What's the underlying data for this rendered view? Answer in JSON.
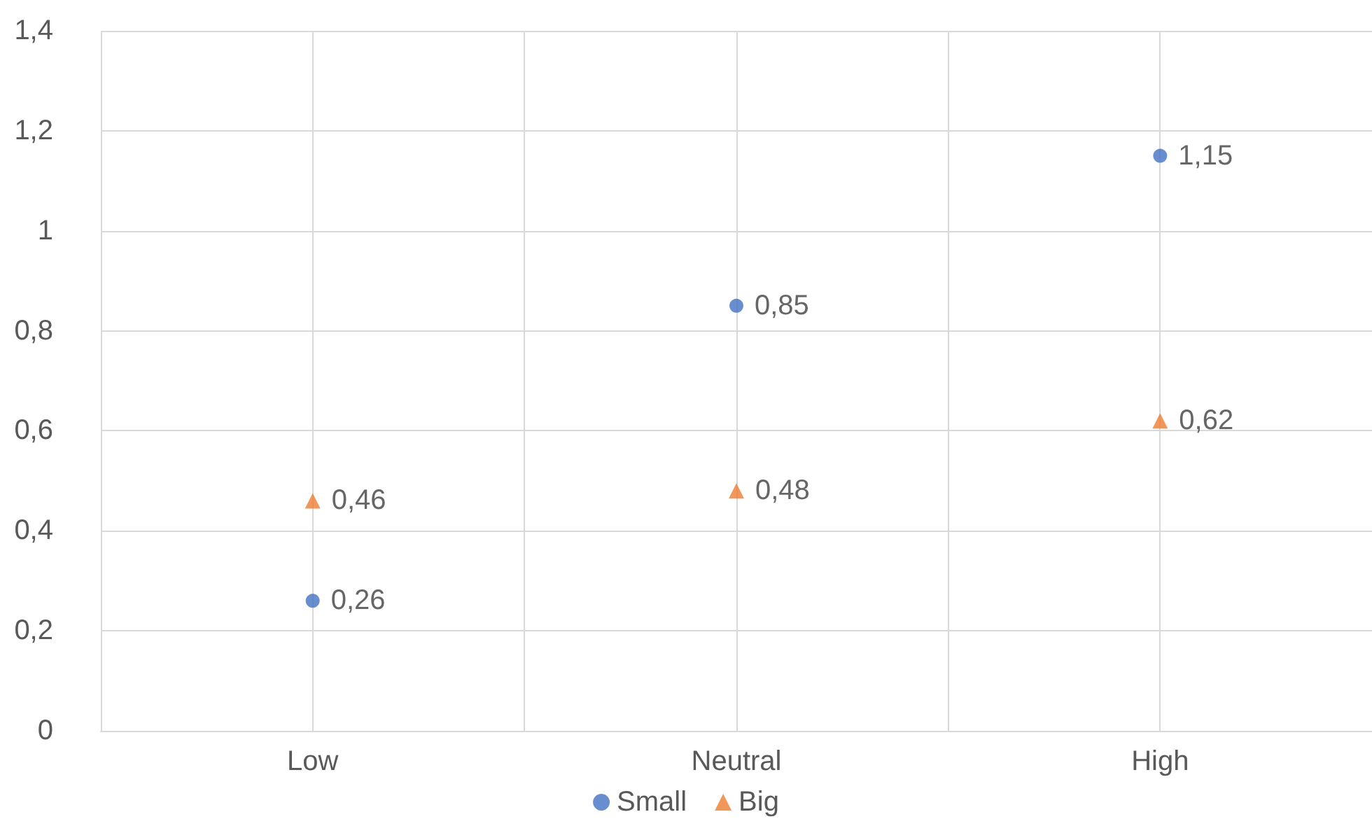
{
  "chart_data": {
    "type": "scatter",
    "categories": [
      "Low",
      "Neutral",
      "High"
    ],
    "series": [
      {
        "name": "Small",
        "color": "#4472c4",
        "marker": "circle",
        "values": [
          0.26,
          0.85,
          1.15
        ],
        "value_labels": [
          "0,26",
          "0,85",
          "1,15"
        ]
      },
      {
        "name": "Big",
        "color": "#ed7d31",
        "marker": "triangle",
        "values": [
          0.46,
          0.48,
          0.62
        ],
        "value_labels": [
          "0,46",
          "0,48",
          "0,62"
        ]
      }
    ],
    "ylim": [
      0,
      1.4
    ],
    "yticks": [
      0,
      {
        "value": 0.2,
        "label": "0,2"
      },
      {
        "value": 0.4,
        "label": "0,4"
      },
      {
        "value": 0.6,
        "label": "0,6"
      },
      {
        "value": 0.8,
        "label": "0,8"
      },
      1,
      {
        "value": 1.2,
        "label": "1,2"
      },
      {
        "value": 1.4,
        "label": "1,4"
      }
    ],
    "grid": true,
    "legend": "bottom"
  }
}
